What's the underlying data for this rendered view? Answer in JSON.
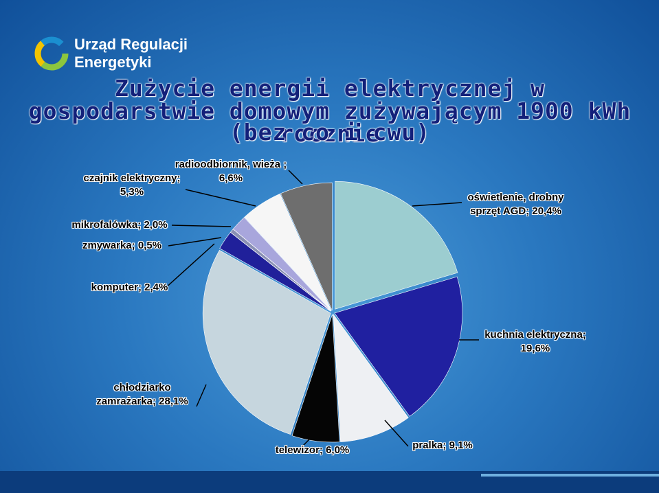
{
  "logo": {
    "line1": "Urząd Regulacji",
    "line2": "Energetyki"
  },
  "chart_data": {
    "type": "pie",
    "title": "Zużycie energii elektrycznej w gospodarstwie domowym zużywającym 1900 kWh rocznie",
    "subtitle": "(bez co i cwu)",
    "categories": [
      "oświetlenie, drobny sprzęt AGD;",
      "kuchnia elektryczna;",
      "pralka;",
      "telewizor;",
      "chłodziarko zamrażarka;",
      "komputer;",
      "zmywarka;",
      "mikrofalówka;",
      "czajnik elektryczny;",
      "radioodbiornik, wieża"
    ],
    "values": [
      20.4,
      19.6,
      9.1,
      6.0,
      28.1,
      2.4,
      0.5,
      2.0,
      5.3,
      6.6
    ],
    "value_labels": [
      "20,4%",
      "19,6%",
      "9,1%",
      "6,0%",
      "28,1%",
      "2,4%",
      "0,5%",
      "2,0%",
      "5,3%",
      "; 6,6%"
    ],
    "colors": [
      "#9ccdd0",
      "#2020a0",
      "#eef0f3",
      "#050505",
      "#c6d6de",
      "#20209a",
      "#8a90b4",
      "#a8a6dc",
      "#f6f6f6",
      "#6e6e6e"
    ]
  }
}
